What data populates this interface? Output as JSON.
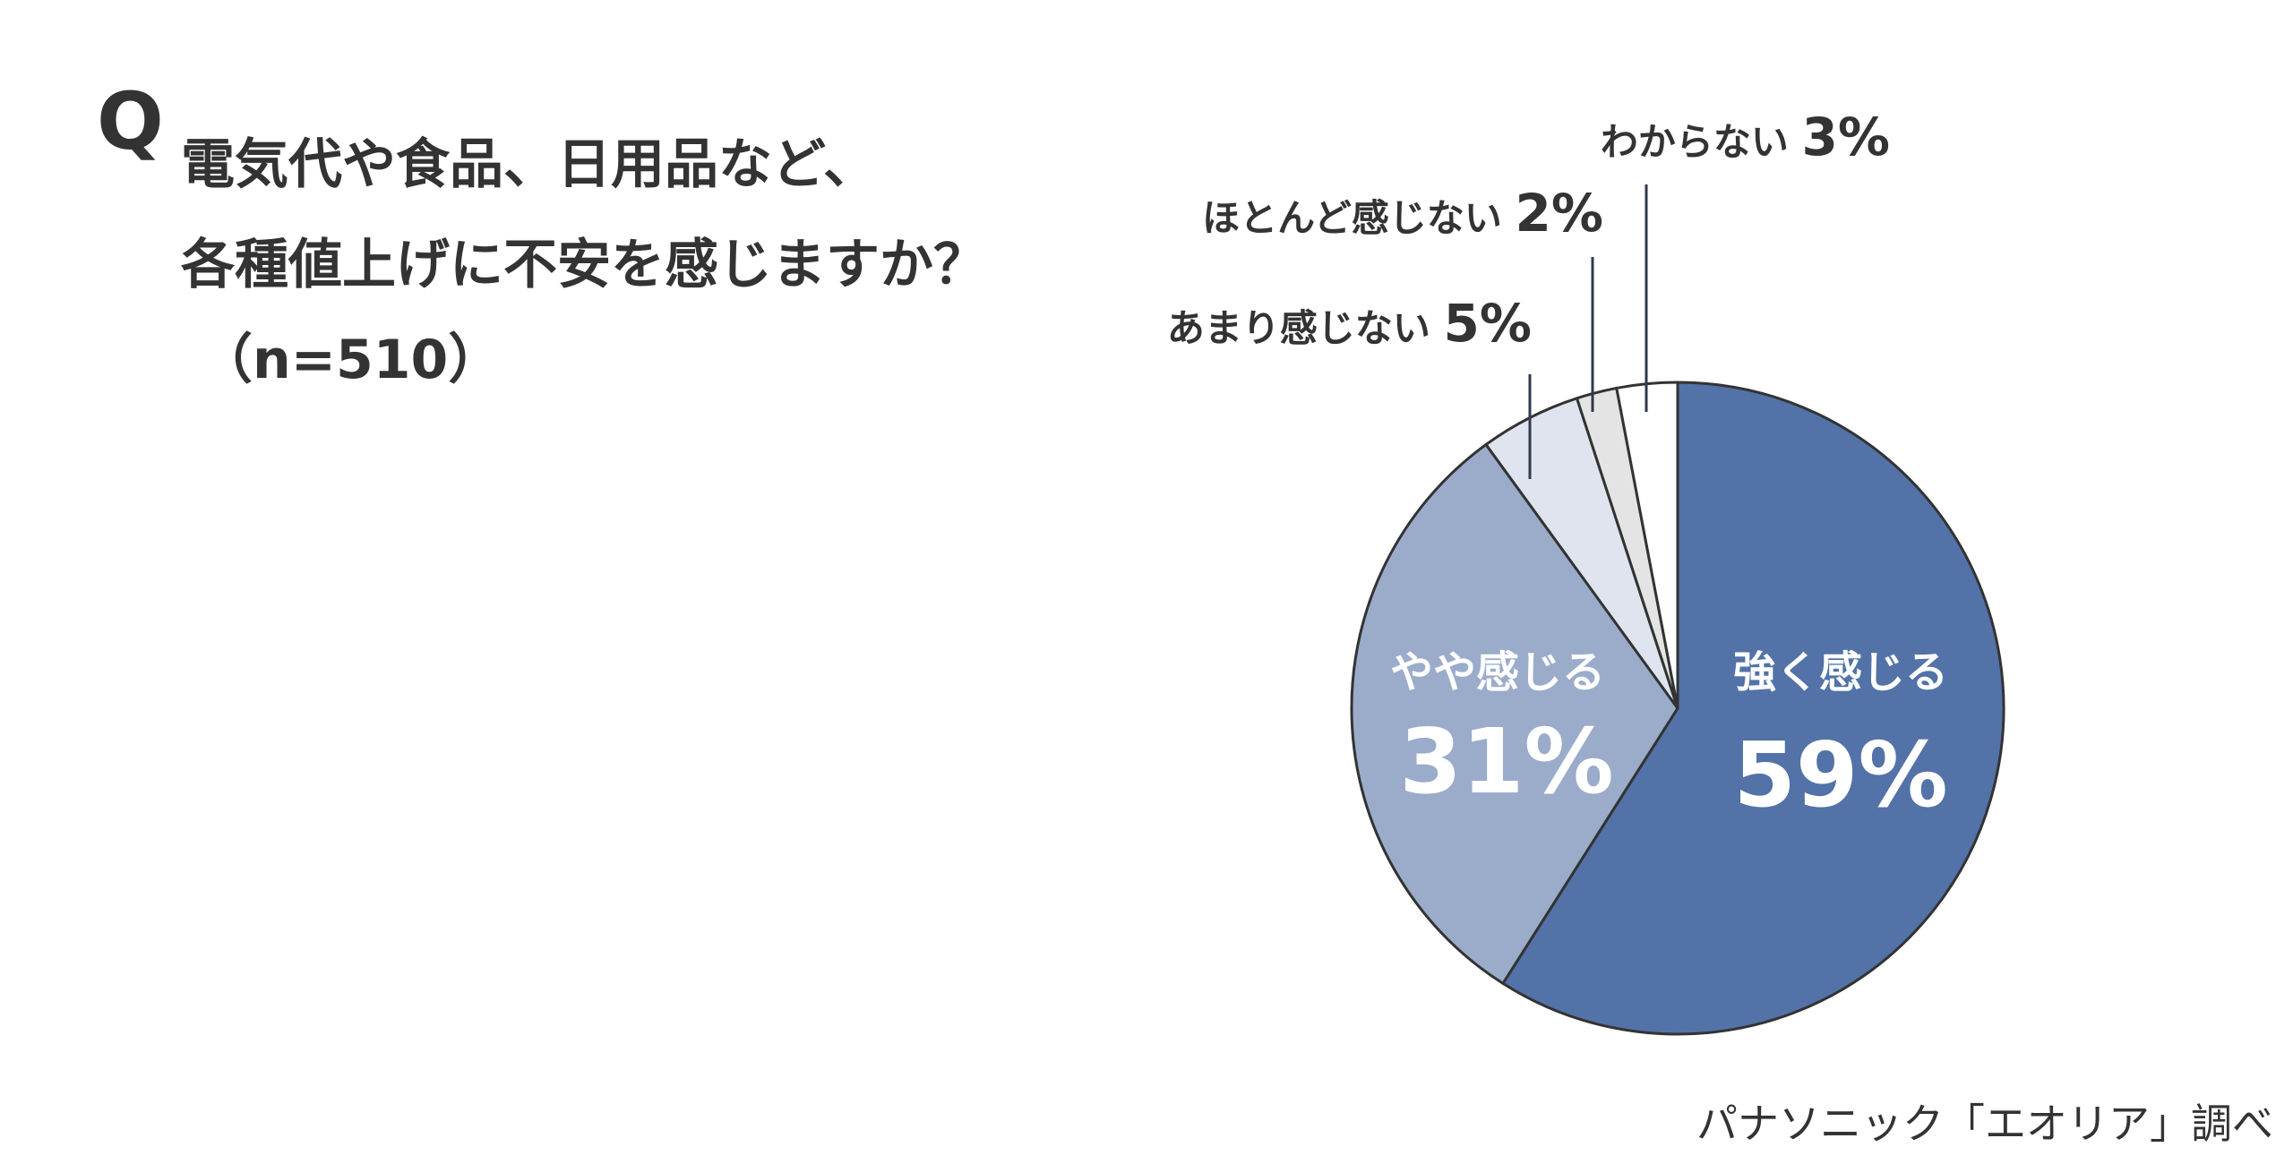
{
  "question": {
    "mark": "Q",
    "line1": "電気代や食品、日用品など、",
    "line2": "各種値上げに不安を感じますか？",
    "sample": "（n=510）"
  },
  "source": "パナソニック「エオリア」調べ",
  "chart_data": {
    "type": "pie",
    "title": "",
    "slices": [
      {
        "label": "強く感じる",
        "value": 59,
        "value_label": "59%",
        "color": "#5272a8",
        "label_position": "inside"
      },
      {
        "label": "やや感じる",
        "value": 31,
        "value_label": "31%",
        "color": "#9aacca",
        "label_position": "inside"
      },
      {
        "label": "あまり感じない",
        "value": 5,
        "value_label": "5%",
        "color": "#dfe4ef",
        "label_position": "outside"
      },
      {
        "label": "ほとんど感じない",
        "value": 2,
        "value_label": "2%",
        "color": "#e4e4e4",
        "label_position": "outside"
      },
      {
        "label": "わからない",
        "value": 3,
        "value_label": "3%",
        "color": "#ffffff",
        "label_position": "outside"
      }
    ],
    "start": "12 o'clock",
    "direction": "clockwise",
    "stroke_color": "#333333",
    "legend": "none"
  }
}
